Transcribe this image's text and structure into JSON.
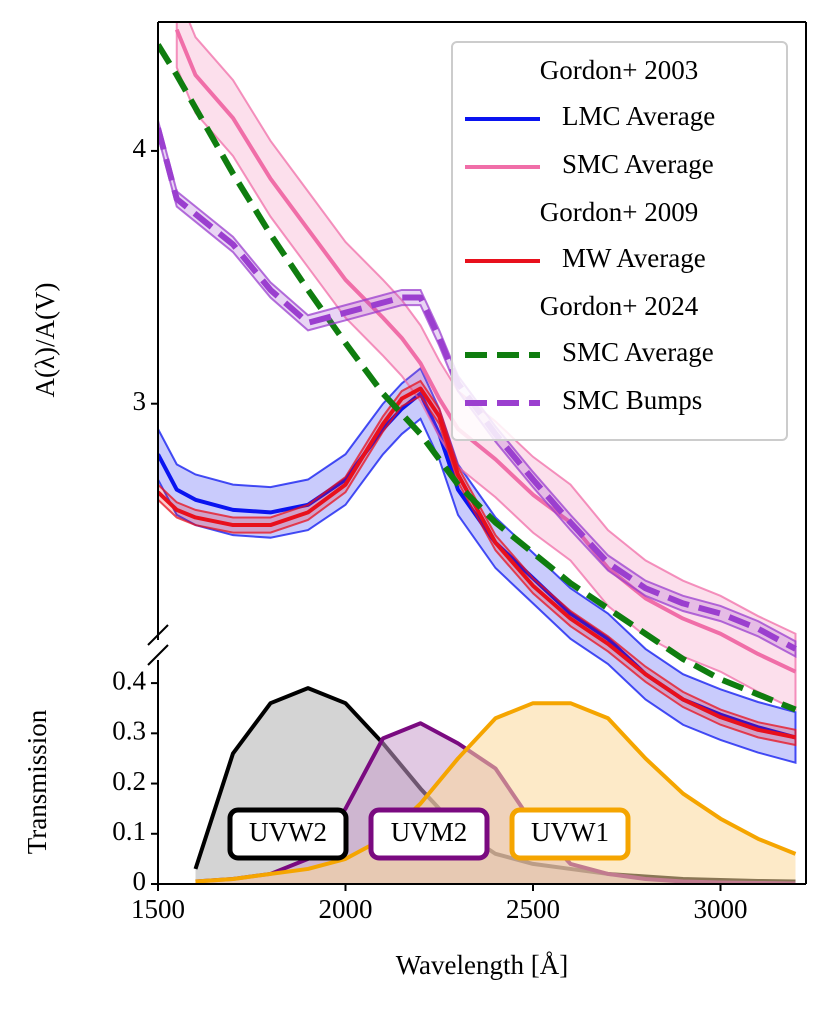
{
  "chart_data": [
    {
      "type": "line",
      "ylabel": "A(λ)/A(V)",
      "x": [
        1500,
        1550,
        1600,
        1700,
        1800,
        1900,
        2000,
        2100,
        2150,
        2200,
        2250,
        2300,
        2400,
        2500,
        2600,
        2700,
        2800,
        2900,
        3000,
        3100,
        3200
      ],
      "xlim": [
        1500,
        3228
      ],
      "ylim": [
        1.1,
        4.51
      ],
      "yticks": [
        3,
        4
      ],
      "legend": "upper right",
      "series": [
        {
          "group": "Gordon+ 2003",
          "name": "LMC Average",
          "color": "#0a14f0",
          "dashed": false,
          "values": [
            2.8,
            2.66,
            2.62,
            2.58,
            2.57,
            2.6,
            2.7,
            2.9,
            2.98,
            3.04,
            2.88,
            2.66,
            2.45,
            2.31,
            2.17,
            2.07,
            1.93,
            1.83,
            1.77,
            1.72,
            1.68
          ],
          "errors": [
            0.1,
            0.1,
            0.1,
            0.1,
            0.1,
            0.1,
            0.1,
            0.1,
            0.1,
            0.1,
            0.1,
            0.1,
            0.1,
            0.1,
            0.1,
            0.1,
            0.1,
            0.1,
            0.1,
            0.1,
            0.1
          ]
        },
        {
          "name": "SMC Average",
          "color": "#f06ea8",
          "dashed": false,
          "values": [
            null,
            4.48,
            4.3,
            4.13,
            3.89,
            3.69,
            3.49,
            3.34,
            3.26,
            3.16,
            3.02,
            2.9,
            2.78,
            2.64,
            2.53,
            2.35,
            2.23,
            2.15,
            2.09,
            2.01,
            1.94
          ],
          "errors": [
            null,
            0.15,
            0.15,
            0.15,
            0.15,
            0.15,
            0.15,
            0.15,
            0.15,
            0.15,
            0.15,
            0.15,
            0.15,
            0.15,
            0.15,
            0.15,
            0.15,
            0.15,
            0.15,
            0.15,
            0.15
          ]
        },
        {
          "group": "Gordon+ 2009",
          "name": "MW Average",
          "color": "#e8101c",
          "dashed": false,
          "values": [
            2.65,
            2.58,
            2.55,
            2.52,
            2.52,
            2.57,
            2.68,
            2.92,
            3.02,
            3.06,
            2.95,
            2.72,
            2.45,
            2.28,
            2.15,
            2.05,
            1.93,
            1.83,
            1.76,
            1.71,
            1.68
          ],
          "errors": [
            0.03,
            0.03,
            0.03,
            0.03,
            0.03,
            0.03,
            0.03,
            0.03,
            0.03,
            0.03,
            0.03,
            0.03,
            0.03,
            0.03,
            0.03,
            0.03,
            0.03,
            0.03,
            0.03,
            0.03,
            0.03
          ]
        },
        {
          "group": "Gordon+ 2024",
          "name": "SMC Average",
          "color": "#0f7d0f",
          "dashed": true,
          "values": [
            4.42,
            4.3,
            4.17,
            3.91,
            3.67,
            3.45,
            3.24,
            3.04,
            2.96,
            2.88,
            2.78,
            2.68,
            2.53,
            2.41,
            2.29,
            2.19,
            2.09,
            1.99,
            1.91,
            1.85,
            1.79
          ]
        },
        {
          "name": "SMC Bumps",
          "color": "#9b3fcf",
          "dashed": true,
          "values": [
            4.09,
            3.81,
            3.75,
            3.63,
            3.45,
            3.32,
            3.36,
            3.4,
            3.42,
            3.42,
            3.26,
            3.08,
            2.88,
            2.7,
            2.53,
            2.37,
            2.27,
            2.21,
            2.17,
            2.11,
            2.03
          ],
          "errors": [
            0.03,
            0.03,
            0.03,
            0.03,
            0.03,
            0.03,
            0.03,
            0.03,
            0.03,
            0.03,
            0.03,
            0.03,
            0.03,
            0.03,
            0.03,
            0.03,
            0.03,
            0.03,
            0.03,
            0.03,
            0.03
          ]
        }
      ]
    },
    {
      "type": "area",
      "xlabel": "Wavelength [Å]",
      "ylabel": "Transmission",
      "x": [
        1600,
        1700,
        1800,
        1900,
        2000,
        2100,
        2200,
        2300,
        2400,
        2500,
        2600,
        2700,
        2800,
        2900,
        3000,
        3100,
        3200
      ],
      "xlim": [
        1500,
        3228
      ],
      "xticks": [
        1500,
        2000,
        2500,
        3000
      ],
      "ylim": [
        0,
        0.446
      ],
      "yticks": [
        0,
        0.1,
        0.2,
        0.3,
        0.4
      ],
      "series": [
        {
          "name": "UVW2",
          "color": "#000000",
          "fill": "#b0b0b0",
          "values": [
            0.03,
            0.26,
            0.36,
            0.39,
            0.36,
            0.28,
            0.19,
            0.11,
            0.06,
            0.04,
            0.03,
            0.02,
            0.015,
            0.01,
            0.008,
            0.006,
            0.005
          ]
        },
        {
          "name": "UVM2",
          "color": "#7a0a80",
          "fill": "#c89ccc",
          "values": [
            0.005,
            0.01,
            0.02,
            0.05,
            0.15,
            0.29,
            0.32,
            0.28,
            0.23,
            0.12,
            0.04,
            0.02,
            0.01,
            0.005,
            0.003,
            0.002,
            0.001
          ]
        },
        {
          "name": "UVW1",
          "color": "#f5a500",
          "fill": "#fbd89a",
          "values": [
            0.005,
            0.01,
            0.02,
            0.03,
            0.05,
            0.09,
            0.16,
            0.25,
            0.33,
            0.36,
            0.36,
            0.33,
            0.25,
            0.18,
            0.13,
            0.09,
            0.06
          ]
        }
      ]
    }
  ]
}
